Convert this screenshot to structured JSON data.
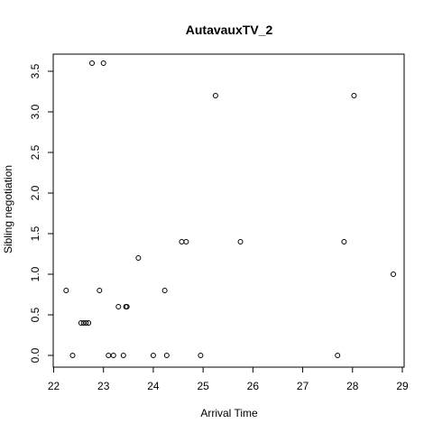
{
  "chart_data": {
    "type": "scatter",
    "title": "AutavauxTV_2",
    "xlabel": "Arrival Time",
    "ylabel": "Sibling negotiation",
    "xlim": [
      22,
      29
    ],
    "ylim": [
      0,
      3.5
    ],
    "x_ticks": [
      22,
      23,
      24,
      25,
      26,
      27,
      28,
      29
    ],
    "y_ticks": [
      0.0,
      0.5,
      1.0,
      1.5,
      2.0,
      2.5,
      3.0,
      3.5
    ],
    "x_tick_labels": [
      "22",
      "23",
      "24",
      "25",
      "26",
      "27",
      "28",
      "29"
    ],
    "y_tick_labels": [
      "0.0",
      "0.5",
      "1.0",
      "1.5",
      "2.0",
      "2.5",
      "3.0",
      "3.5"
    ],
    "grid": false,
    "colors": {
      "points": "#000000",
      "axes": "#000000"
    },
    "points": [
      {
        "x": 22.25,
        "y": 0.8
      },
      {
        "x": 22.38,
        "y": 0.0
      },
      {
        "x": 22.55,
        "y": 0.4
      },
      {
        "x": 22.6,
        "y": 0.4
      },
      {
        "x": 22.65,
        "y": 0.4
      },
      {
        "x": 22.7,
        "y": 0.4
      },
      {
        "x": 22.77,
        "y": 3.6
      },
      {
        "x": 22.92,
        "y": 0.8
      },
      {
        "x": 23.0,
        "y": 3.6
      },
      {
        "x": 23.1,
        "y": 0.0
      },
      {
        "x": 23.2,
        "y": 0.0
      },
      {
        "x": 23.3,
        "y": 0.6
      },
      {
        "x": 23.4,
        "y": 0.0
      },
      {
        "x": 23.45,
        "y": 0.6
      },
      {
        "x": 23.47,
        "y": 0.6
      },
      {
        "x": 23.7,
        "y": 1.2
      },
      {
        "x": 24.0,
        "y": 0.0
      },
      {
        "x": 24.23,
        "y": 0.8
      },
      {
        "x": 24.27,
        "y": 0.0
      },
      {
        "x": 24.57,
        "y": 1.4
      },
      {
        "x": 24.66,
        "y": 1.4
      },
      {
        "x": 24.95,
        "y": 0.0
      },
      {
        "x": 25.25,
        "y": 3.2
      },
      {
        "x": 25.75,
        "y": 1.4
      },
      {
        "x": 27.7,
        "y": 0.0
      },
      {
        "x": 27.83,
        "y": 1.4
      },
      {
        "x": 28.03,
        "y": 3.2
      },
      {
        "x": 28.82,
        "y": 1.0
      }
    ]
  }
}
